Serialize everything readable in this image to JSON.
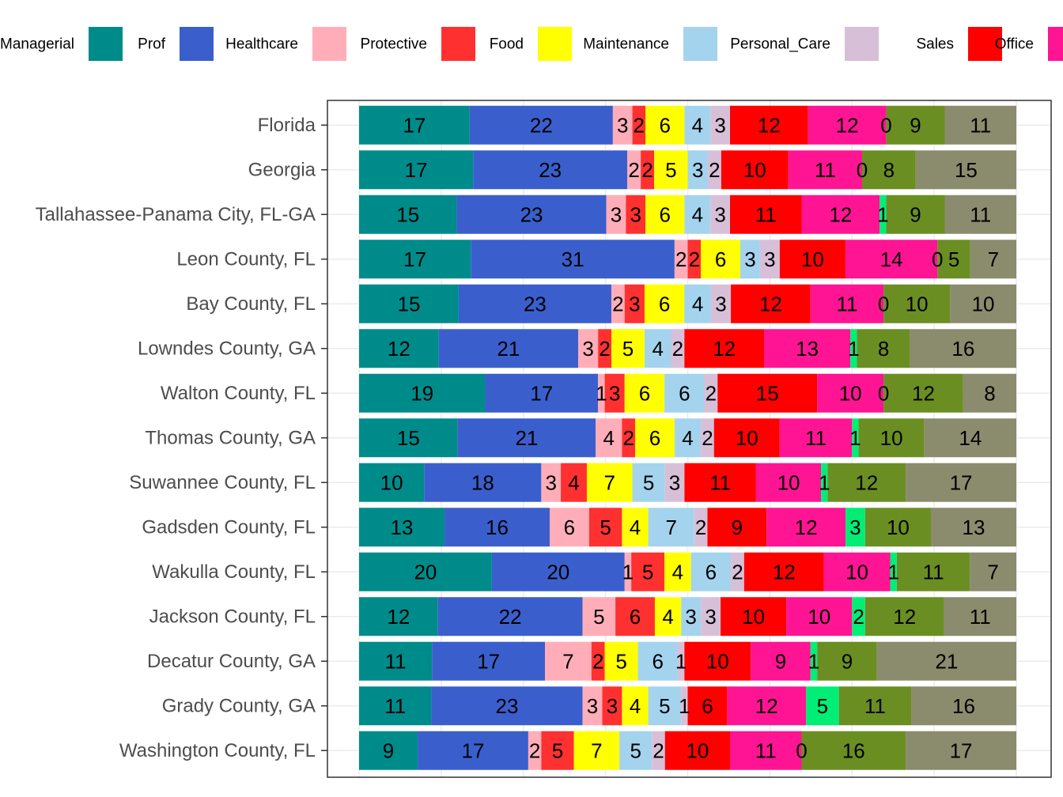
{
  "chart_data": {
    "type": "bar",
    "orientation": "horizontal",
    "stacked": true,
    "normalized": true,
    "title": "",
    "xlabel": "",
    "ylabel": "",
    "xlim": [
      0,
      100
    ],
    "grid": true,
    "legend_position": "top",
    "categories": [
      "Florida",
      "Georgia",
      "Tallahassee-Panama City, FL-GA",
      "Leon County, FL",
      "Bay County, FL",
      "Lowndes County, GA",
      "Walton County, FL",
      "Thomas County, GA",
      "Suwannee County, FL",
      "Gadsden County, FL",
      "Wakulla County, FL",
      "Jackson County, FL",
      "Decatur County, GA",
      "Grady County, GA",
      "Washington County, FL"
    ],
    "series": [
      {
        "name": "Managerial",
        "color": "#008b8b",
        "values": [
          17,
          17,
          15,
          17,
          15,
          12,
          19,
          15,
          10,
          13,
          20,
          12,
          11,
          11,
          9
        ]
      },
      {
        "name": "Prof",
        "color": "#3a5fcd",
        "values": [
          22,
          23,
          23,
          31,
          23,
          21,
          17,
          21,
          18,
          16,
          20,
          22,
          17,
          23,
          17
        ]
      },
      {
        "name": "Healthcare",
        "color": "#ffaeb9",
        "values": [
          3,
          2,
          3,
          2,
          2,
          3,
          1,
          4,
          3,
          6,
          1,
          5,
          7,
          3,
          2
        ]
      },
      {
        "name": "Protective",
        "color": "#ff3030",
        "values": [
          2,
          2,
          3,
          2,
          3,
          2,
          3,
          2,
          4,
          5,
          5,
          6,
          2,
          3,
          5
        ]
      },
      {
        "name": "Food",
        "color": "#ffff00",
        "values": [
          6,
          5,
          6,
          6,
          6,
          5,
          6,
          6,
          7,
          4,
          4,
          4,
          5,
          4,
          7
        ]
      },
      {
        "name": "Maintenance",
        "color": "#a4d3ee",
        "values": [
          4,
          3,
          4,
          3,
          4,
          4,
          6,
          4,
          5,
          7,
          6,
          3,
          6,
          5,
          5
        ]
      },
      {
        "name": "Personal_Care",
        "color": "#d8bfd8",
        "values": [
          3,
          2,
          3,
          3,
          3,
          2,
          2,
          2,
          3,
          2,
          2,
          3,
          1,
          1,
          2
        ]
      },
      {
        "name": "Sales",
        "color": "#ff0000",
        "values": [
          12,
          10,
          11,
          10,
          12,
          12,
          15,
          10,
          11,
          9,
          12,
          10,
          10,
          6,
          10
        ]
      },
      {
        "name": "Office",
        "color": "#ff1493",
        "values": [
          12,
          11,
          12,
          14,
          11,
          13,
          10,
          11,
          10,
          12,
          10,
          10,
          9,
          12,
          11
        ]
      },
      {
        "name": "",
        "color": "#00ee76",
        "values": [
          0,
          0,
          1,
          0,
          0,
          1,
          0,
          1,
          1,
          3,
          1,
          2,
          1,
          5,
          0
        ]
      },
      {
        "name": "",
        "color": "#6b8e23",
        "values": [
          9,
          8,
          9,
          5,
          10,
          8,
          12,
          10,
          12,
          10,
          11,
          12,
          9,
          11,
          16
        ]
      },
      {
        "name": "",
        "color": "#8b8b6e",
        "values": [
          11,
          15,
          11,
          7,
          10,
          16,
          8,
          14,
          17,
          13,
          7,
          11,
          21,
          16,
          17
        ]
      }
    ]
  }
}
